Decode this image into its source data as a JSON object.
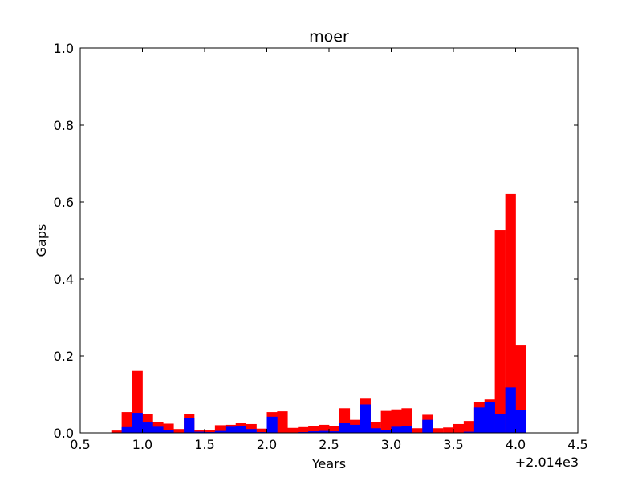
{
  "chart_data": {
    "type": "bar",
    "title": "moer",
    "xlabel": "Years",
    "ylabel": "Gaps",
    "x_offset_label": "+2.014e3",
    "xlim": [
      0.5,
      4.5
    ],
    "ylim": [
      0.0,
      1.0
    ],
    "x_ticks": [
      0.5,
      1.0,
      1.5,
      2.0,
      2.5,
      3.0,
      3.5,
      4.0,
      4.5
    ],
    "x_tick_labels": [
      "0.5",
      "1.0",
      "1.5",
      "2.0",
      "2.5",
      "3.0",
      "3.5",
      "4.0",
      "4.5"
    ],
    "y_ticks": [
      0.0,
      0.2,
      0.4,
      0.6,
      0.8,
      1.0
    ],
    "y_tick_labels": [
      "0.0",
      "0.2",
      "0.4",
      "0.6",
      "0.8",
      "1.0"
    ],
    "bin_width": 0.0833,
    "bin_starts": [
      0.75,
      0.833,
      0.917,
      1.0,
      1.083,
      1.167,
      1.25,
      1.333,
      1.417,
      1.5,
      1.583,
      1.667,
      1.75,
      1.833,
      1.917,
      2.0,
      2.083,
      2.167,
      2.25,
      2.333,
      2.417,
      2.5,
      2.583,
      2.667,
      2.75,
      2.833,
      2.917,
      3.0,
      3.083,
      3.167,
      3.25,
      3.333,
      3.417,
      3.5,
      3.583,
      3.667,
      3.75,
      3.833,
      3.917,
      4.0
    ],
    "series": [
      {
        "color": "#ff0000",
        "values": [
          0.006,
          0.054,
          0.161,
          0.05,
          0.029,
          0.024,
          0.01,
          0.05,
          0.008,
          0.008,
          0.02,
          0.021,
          0.025,
          0.023,
          0.011,
          0.054,
          0.056,
          0.013,
          0.015,
          0.017,
          0.021,
          0.017,
          0.064,
          0.034,
          0.089,
          0.028,
          0.057,
          0.061,
          0.064,
          0.012,
          0.047,
          0.012,
          0.014,
          0.023,
          0.031,
          0.081,
          0.087,
          0.527,
          0.621,
          0.229
        ]
      },
      {
        "color": "#0000ff",
        "values": [
          0.0,
          0.015,
          0.052,
          0.027,
          0.016,
          0.008,
          0.0,
          0.039,
          0.003,
          0.002,
          0.005,
          0.016,
          0.017,
          0.01,
          0.002,
          0.042,
          0.0,
          0.0,
          0.002,
          0.004,
          0.005,
          0.004,
          0.025,
          0.021,
          0.074,
          0.012,
          0.008,
          0.016,
          0.017,
          0.0,
          0.034,
          0.0,
          0.0,
          0.0,
          0.003,
          0.066,
          0.08,
          0.05,
          0.118,
          0.06
        ]
      }
    ],
    "grid": false,
    "legend": "none"
  }
}
